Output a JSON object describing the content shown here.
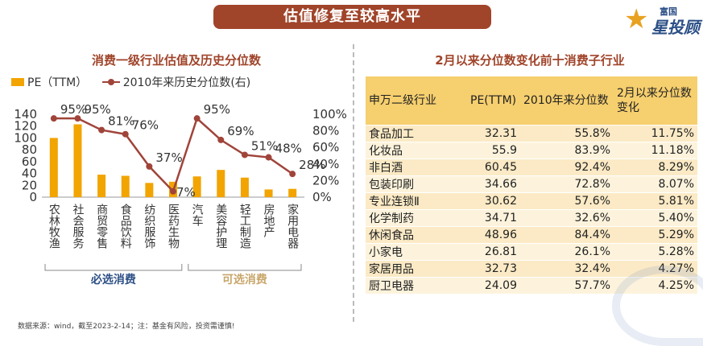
{
  "banner": {
    "title": "估值修复至较高水平"
  },
  "logo": {
    "brand_top": "富国",
    "brand_main": "星投顾"
  },
  "left_panel": {
    "title": "消费一级行业估值及历史分位数",
    "legend_bar": "PE（TTM）",
    "legend_line": "2010年来历史分位数(右)"
  },
  "chart_data": {
    "type": "bar",
    "categories": [
      "农林牧渔",
      "社会服务",
      "商贸零售",
      "食品饮料",
      "纺织服饰",
      "医药生物",
      "汽车",
      "美容护理",
      "轻工制造",
      "房地产",
      "家用电器"
    ],
    "series": [
      {
        "name": "PE（TTM）",
        "type": "bar",
        "axis": "left",
        "values": [
          100,
          123,
          38,
          36,
          24,
          26,
          35,
          46,
          33,
          13,
          14
        ]
      },
      {
        "name": "2010年来历史分位数(右)",
        "type": "line",
        "axis": "right",
        "values": [
          95,
          95,
          81,
          76,
          37,
          7,
          95,
          69,
          51,
          48,
          28
        ],
        "labels": [
          "95%",
          "95%",
          "81%",
          "76%",
          "37%",
          "7%",
          "95%",
          "69%",
          "51%",
          "48%",
          "28%"
        ]
      }
    ],
    "y_left": {
      "ticks": [
        0,
        20,
        40,
        60,
        80,
        100,
        120,
        140
      ],
      "ylim": [
        0,
        140
      ]
    },
    "y_right": {
      "ticks": [
        "0%",
        "20%",
        "40%",
        "60%",
        "80%",
        "100%"
      ],
      "ylim": [
        0,
        100
      ]
    },
    "groups": [
      {
        "label": "必选消费",
        "from": 0,
        "to": 5,
        "color": "#2c4f86"
      },
      {
        "label": "可选消费",
        "from": 6,
        "to": 10,
        "color": "#c8a66a"
      }
    ]
  },
  "right_panel": {
    "title": "2月以来分位数变化前十消费子行业",
    "columns": [
      "申万二级行业",
      "PE(TTM)",
      "2010年来分位数",
      "2月以来分位数变化"
    ],
    "rows": [
      [
        "食品加工",
        "32.31",
        "55.8%",
        "11.75%"
      ],
      [
        "化妆品",
        "55.9",
        "83.9%",
        "11.18%"
      ],
      [
        "非白酒",
        "60.45",
        "92.4%",
        "8.29%"
      ],
      [
        "包装印刷",
        "34.66",
        "72.8%",
        "8.07%"
      ],
      [
        "专业连锁Ⅱ",
        "30.62",
        "57.6%",
        "5.81%"
      ],
      [
        "化学制药",
        "34.71",
        "32.6%",
        "5.40%"
      ],
      [
        "休闲食品",
        "48.96",
        "84.4%",
        "5.29%"
      ],
      [
        "小家电",
        "26.81",
        "26.1%",
        "5.28%"
      ],
      [
        "家居用品",
        "32.73",
        "32.4%",
        "4.27%"
      ],
      [
        "厨卫电器",
        "24.09",
        "57.7%",
        "4.25%"
      ]
    ]
  },
  "footer": {
    "note": "数据来源：wind，截至2023-2-14；注：基金有风险，投资需谨慎!"
  },
  "colors": {
    "bar": "#f2a400",
    "line": "#a0443a",
    "header": "#f6cf6e",
    "row": "#fbeac5",
    "accent": "#a0442a"
  }
}
